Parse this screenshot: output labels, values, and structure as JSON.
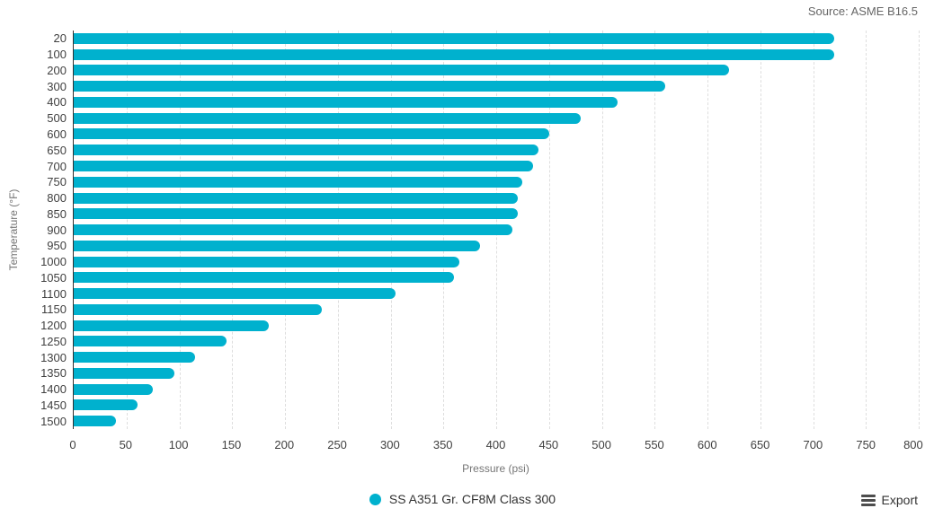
{
  "header": {
    "source": "Source: ASME B16.5"
  },
  "chart_data": {
    "type": "bar",
    "orientation": "horizontal",
    "title": "",
    "categories": [
      20,
      100,
      200,
      300,
      400,
      500,
      600,
      650,
      700,
      750,
      800,
      850,
      900,
      950,
      1000,
      1050,
      1100,
      1150,
      1200,
      1250,
      1300,
      1350,
      1400,
      1450,
      1500
    ],
    "values": [
      720,
      720,
      620,
      560,
      515,
      480,
      450,
      440,
      435,
      425,
      420,
      420,
      415,
      385,
      365,
      360,
      305,
      235,
      185,
      145,
      115,
      95,
      75,
      60,
      40
    ],
    "series": [
      {
        "name": "SS A351 Gr. CF8M Class 300",
        "values": [
          720,
          720,
          620,
          560,
          515,
          480,
          450,
          440,
          435,
          425,
          420,
          420,
          415,
          385,
          365,
          360,
          305,
          235,
          185,
          145,
          115,
          95,
          75,
          60,
          40
        ]
      }
    ],
    "xlabel": "Pressure (psi)",
    "ylabel": "Temperature (°F)",
    "xlim": [
      0,
      800
    ],
    "x_tick_step": 50,
    "grid": "vertical-dashed",
    "legend_position": "bottom-center"
  },
  "legend": {
    "label": "SS A351 Gr. CF8M Class 300",
    "marker": "circle"
  },
  "export": {
    "label": "Export"
  },
  "colors": {
    "bar": "#00b1ce",
    "legend_marker": "#00b1ce",
    "grid": "#dedede",
    "axis_line": "#303030",
    "tick_text": "#404040",
    "axis_title_text": "#757575",
    "source_text": "#666666",
    "legend_text": "#333333"
  }
}
